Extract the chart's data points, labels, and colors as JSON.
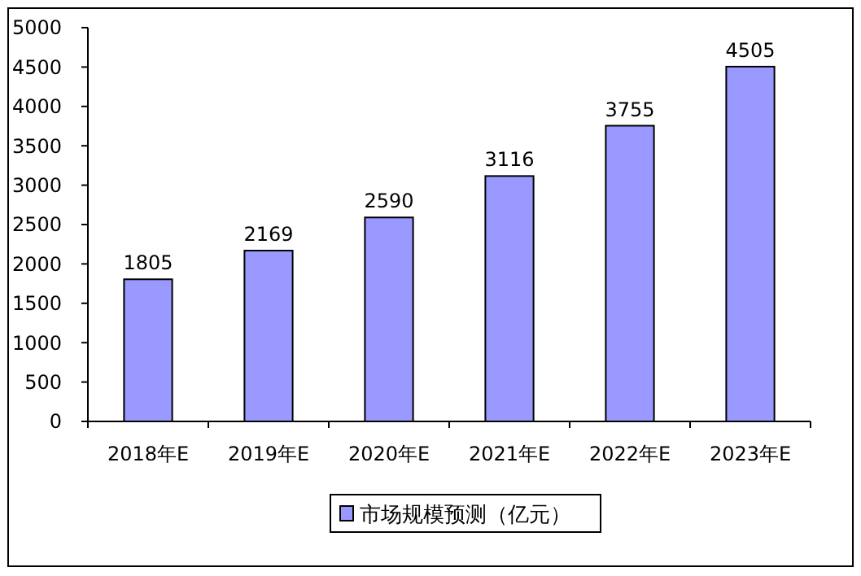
{
  "chart_data": {
    "type": "bar",
    "categories": [
      "2018年E",
      "2019年E",
      "2020年E",
      "2021年E",
      "2022年E",
      "2023年E"
    ],
    "series": [
      {
        "name": "市场规模预测（亿元）",
        "color": "#9999ff",
        "values": [
          1805,
          2169,
          2590,
          3116,
          3755,
          4505
        ]
      }
    ],
    "ylim": [
      0,
      5000
    ],
    "yticks": [
      0,
      500,
      1000,
      1500,
      2000,
      2500,
      3000,
      3500,
      4000,
      4500,
      5000
    ],
    "data_labels": true,
    "legend": "bottom",
    "grid": false
  }
}
